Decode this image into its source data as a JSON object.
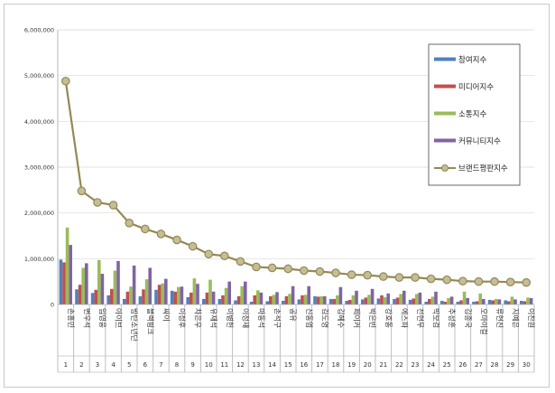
{
  "chart_data": {
    "type": "bar",
    "title": "",
    "xlabel": "",
    "ylabel": "",
    "ylim": [
      0,
      6000000
    ],
    "yticks": [
      "0",
      "1,000,000",
      "2,000,000",
      "3,000,000",
      "4,000,000",
      "5,000,000",
      "6,000,000"
    ],
    "ytick_values": [
      0,
      1000000,
      2000000,
      3000000,
      4000000,
      5000000,
      6000000
    ],
    "grid": true,
    "legend_position": "right",
    "categories": [
      "손흥민",
      "변우석",
      "임영웅",
      "아이브",
      "방탄소년단",
      "블랙핑크",
      "싸이",
      "이정후",
      "차은우",
      "유재석",
      "이병헌",
      "이정재",
      "마동석",
      "손석구",
      "공유",
      "신동엽",
      "김도영",
      "김혜수",
      "페이커",
      "박은빈",
      "강호동",
      "에스파",
      "전현무",
      "박보검",
      "추성훈",
      "김종국",
      "오마이걸",
      "류현진",
      "지예은",
      "이찬원"
    ],
    "ranks": [
      "1",
      "2",
      "3",
      "4",
      "5",
      "6",
      "7",
      "8",
      "9",
      "10",
      "11",
      "12",
      "13",
      "14",
      "15",
      "16",
      "17",
      "18",
      "19",
      "20",
      "21",
      "22",
      "23",
      "24",
      "25",
      "26",
      "27",
      "28",
      "29",
      "30"
    ],
    "series": [
      {
        "name": "참여지수",
        "type": "bar",
        "color": "#4f81bd",
        "values": [
          980000,
          330000,
          250000,
          200000,
          120000,
          180000,
          320000,
          300000,
          160000,
          120000,
          120000,
          90000,
          60000,
          70000,
          80000,
          110000,
          180000,
          120000,
          80000,
          110000,
          130000,
          120000,
          100000,
          60000,
          80000,
          60000,
          60000,
          100000,
          90000,
          80000
        ]
      },
      {
        "name": "미디어지수",
        "type": "bar",
        "color": "#c0504d",
        "values": [
          920000,
          430000,
          320000,
          340000,
          280000,
          330000,
          430000,
          280000,
          260000,
          260000,
          200000,
          180000,
          200000,
          180000,
          180000,
          200000,
          170000,
          120000,
          100000,
          150000,
          200000,
          150000,
          130000,
          120000,
          60000,
          90000,
          70000,
          90000,
          70000,
          70000
        ]
      },
      {
        "name": "소통지수",
        "type": "bar",
        "color": "#9bbb59",
        "values": [
          1680000,
          800000,
          970000,
          740000,
          390000,
          550000,
          460000,
          380000,
          570000,
          540000,
          360000,
          400000,
          310000,
          210000,
          230000,
          210000,
          180000,
          200000,
          200000,
          210000,
          160000,
          230000,
          230000,
          170000,
          140000,
          280000,
          240000,
          120000,
          170000,
          150000
        ]
      },
      {
        "name": "커뮤니티지수",
        "type": "bar",
        "color": "#8064a2",
        "values": [
          1300000,
          900000,
          670000,
          950000,
          850000,
          800000,
          560000,
          390000,
          450000,
          280000,
          500000,
          500000,
          260000,
          270000,
          400000,
          400000,
          180000,
          380000,
          300000,
          340000,
          240000,
          300000,
          260000,
          280000,
          170000,
          140000,
          120000,
          110000,
          110000,
          140000
        ]
      },
      {
        "name": "브랜드평판지수",
        "type": "line",
        "color": "#938953",
        "marker": "#c4bd97",
        "values": [
          4880000,
          2480000,
          2230000,
          2170000,
          1780000,
          1650000,
          1540000,
          1410000,
          1270000,
          1100000,
          1060000,
          940000,
          820000,
          800000,
          780000,
          740000,
          720000,
          690000,
          650000,
          640000,
          610000,
          590000,
          590000,
          560000,
          540000,
          510000,
          500000,
          500000,
          490000,
          480000
        ]
      }
    ]
  }
}
